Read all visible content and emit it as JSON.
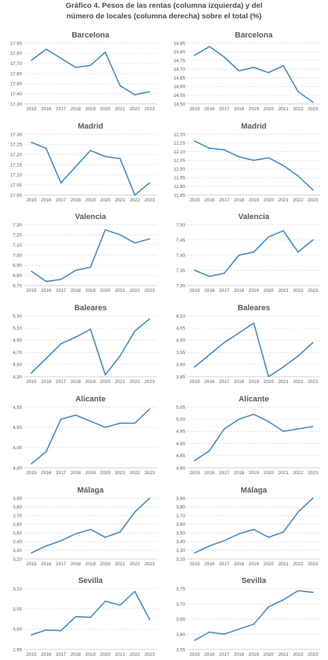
{
  "header": {
    "title_line1": "Gráfico 4. Pesos de las rentas (columna izquierda) y del",
    "title_line2": "número de locales (columna derecha) sobre el total (%)"
  },
  "style": {
    "line_color": "#4a8ec2"
  },
  "chart_data": [
    {
      "type": "line",
      "title": "Barcelona",
      "column": "izquierda",
      "x": [
        2015,
        2016,
        2017,
        2018,
        2019,
        2020,
        2021,
        2022,
        2023
      ],
      "y": [
        17.73,
        17.84,
        17.75,
        17.66,
        17.68,
        17.81,
        17.48,
        17.39,
        17.42
      ],
      "ylim": [
        17.3,
        17.9
      ],
      "yticks": [
        "17,30",
        "17,40",
        "17,50",
        "17,60",
        "17,70",
        "17,80",
        "17,90"
      ]
    },
    {
      "type": "line",
      "title": "Barcelona",
      "column": "derecha",
      "x": [
        2015,
        2016,
        2017,
        2018,
        2019,
        2020,
        2021,
        2022,
        2023
      ],
      "y": [
        14.78,
        14.83,
        14.77,
        14.69,
        14.71,
        14.68,
        14.72,
        14.57,
        14.51
      ],
      "ylim": [
        14.5,
        14.85
      ],
      "yticks": [
        "14,50",
        "14,55",
        "14,60",
        "14,65",
        "14,70",
        "14,75",
        "14,80",
        "14,85"
      ]
    },
    {
      "type": "line",
      "title": "Madrid",
      "column": "izquierda",
      "x": [
        2015,
        2016,
        2017,
        2018,
        2019,
        2020,
        2021,
        2022,
        2023
      ],
      "y": [
        17.26,
        17.23,
        17.06,
        17.14,
        17.22,
        17.19,
        17.18,
        17.0,
        17.06
      ],
      "ylim": [
        17.0,
        17.3
      ],
      "yticks": [
        "17,00",
        "17,05",
        "17,10",
        "17,15",
        "17,20",
        "17,25",
        "17,30"
      ]
    },
    {
      "type": "line",
      "title": "Madrid",
      "column": "derecha",
      "x": [
        2015,
        2016,
        2017,
        2018,
        2019,
        2020,
        2021,
        2022,
        2023
      ],
      "y": [
        12.16,
        12.12,
        12.11,
        12.07,
        12.05,
        12.065,
        12.02,
        11.96,
        11.88
      ],
      "ylim": [
        11.85,
        12.2
      ],
      "yticks": [
        "11,85",
        "11,90",
        "11,95",
        "12,00",
        "12,05",
        "12,10",
        "12,15",
        "12,20"
      ]
    },
    {
      "type": "line",
      "title": "Valencia",
      "column": "izquierda",
      "x": [
        2015,
        2016,
        2017,
        2018,
        2019,
        2020,
        2021,
        2022,
        2023
      ],
      "y": [
        6.84,
        6.74,
        6.76,
        6.85,
        6.88,
        7.25,
        7.2,
        7.12,
        7.16
      ],
      "ylim": [
        6.7,
        7.3
      ],
      "yticks": [
        "6,70",
        "6,80",
        "6,90",
        "7,00",
        "7,10",
        "7,20",
        "7,30"
      ]
    },
    {
      "type": "line",
      "title": "Valencia",
      "column": "derecha",
      "x": [
        2015,
        2016,
        2017,
        2018,
        2019,
        2020,
        2021,
        2022,
        2023
      ],
      "y": [
        7.35,
        7.33,
        7.34,
        7.4,
        7.41,
        7.46,
        7.48,
        7.41,
        7.45
      ],
      "ylim": [
        7.3,
        7.5
      ],
      "yticks": [
        "7,30",
        "7,35",
        "7,40",
        "7,45",
        "7,50"
      ]
    },
    {
      "type": "line",
      "title": "Baleares",
      "column": "izquierda",
      "x": [
        2015,
        2016,
        2017,
        2018,
        2019,
        2020,
        2021,
        2022,
        2023
      ],
      "y": [
        4.36,
        4.6,
        4.84,
        4.95,
        5.08,
        4.33,
        4.64,
        5.05,
        5.25
      ],
      "ylim": [
        4.3,
        5.3
      ],
      "yticks": [
        "4,30",
        "4,50",
        "4,70",
        "4,90",
        "5,10",
        "5,30"
      ]
    },
    {
      "type": "line",
      "title": "Baleares",
      "column": "derecha",
      "x": [
        2015,
        2016,
        2017,
        2018,
        2019,
        2020,
        2021,
        2022,
        2023
      ],
      "y": [
        3.89,
        3.94,
        3.99,
        4.03,
        4.07,
        3.85,
        3.89,
        3.935,
        3.99
      ],
      "ylim": [
        3.85,
        4.1
      ],
      "yticks": [
        "3,85",
        "3,90",
        "3,95",
        "4,00",
        "4,05",
        "4,10"
      ]
    },
    {
      "type": "line",
      "title": "Alicante",
      "column": "izquierda",
      "x": [
        2015,
        2016,
        2017,
        2018,
        2019,
        2020,
        2021,
        2022,
        2023
      ],
      "y": [
        4.41,
        4.44,
        4.52,
        4.53,
        4.515,
        4.5,
        4.51,
        4.51,
        4.545
      ],
      "ylim": [
        4.4,
        4.55
      ],
      "yticks": [
        "4,40",
        "4,45",
        "4,50",
        "4,55"
      ]
    },
    {
      "type": "line",
      "title": "Alicante",
      "column": "derecha",
      "x": [
        2015,
        2016,
        2017,
        2018,
        2019,
        2020,
        2021,
        2022,
        2023
      ],
      "y": [
        4.83,
        4.87,
        4.96,
        5.0,
        5.02,
        4.99,
        4.95,
        4.96,
        4.97
      ],
      "ylim": [
        4.8,
        5.05
      ],
      "yticks": [
        "4,80",
        "4,85",
        "4,90",
        "4,95",
        "5,00",
        "5,05"
      ]
    },
    {
      "type": "line",
      "title": "Málaga",
      "column": "izquierda",
      "x": [
        2015,
        2016,
        2017,
        2018,
        2019,
        2020,
        2021,
        2022,
        2023
      ],
      "y": [
        3.27,
        3.35,
        3.41,
        3.49,
        3.54,
        3.45,
        3.51,
        3.74,
        3.9
      ],
      "ylim": [
        3.2,
        3.9
      ],
      "yticks": [
        "3,20",
        "3,30",
        "3,40",
        "3,50",
        "3,60",
        "3,70",
        "3,80",
        "3,90"
      ]
    },
    {
      "type": "line",
      "title": "Málaga",
      "column": "derecha",
      "x": [
        2015,
        2016,
        2017,
        2018,
        2019,
        2020,
        2021,
        2022,
        2023
      ],
      "y": [
        3.27,
        3.35,
        3.41,
        3.49,
        3.54,
        3.45,
        3.51,
        3.74,
        3.9
      ],
      "ylim": [
        3.2,
        3.9
      ],
      "yticks": [
        "3,20",
        "3,30",
        "3,40",
        "3,50",
        "3,60",
        "3,70",
        "3,80",
        "3,90"
      ]
    },
    {
      "type": "line",
      "title": "Sevilla",
      "column": "izquierda",
      "x": [
        2015,
        2016,
        2017,
        2018,
        2019,
        2020,
        2021,
        2022,
        2023
      ],
      "y": [
        2.986,
        2.998,
        2.996,
        3.031,
        3.029,
        3.069,
        3.059,
        3.093,
        3.024
      ],
      "ylim": [
        2.95,
        3.1
      ],
      "yticks": [
        "2,95",
        "3,00",
        "3,05",
        "3,10"
      ]
    },
    {
      "type": "line",
      "title": "Sevilla",
      "column": "derecha",
      "x": [
        2015,
        2016,
        2017,
        2018,
        2019,
        2020,
        2021,
        2022,
        2023
      ],
      "y": [
        3.58,
        3.607,
        3.6,
        3.617,
        3.633,
        3.69,
        3.713,
        3.743,
        3.738
      ],
      "ylim": [
        3.55,
        3.75
      ],
      "yticks": [
        "3,55",
        "3,60",
        "3,65",
        "3,70",
        "3,75"
      ]
    }
  ]
}
